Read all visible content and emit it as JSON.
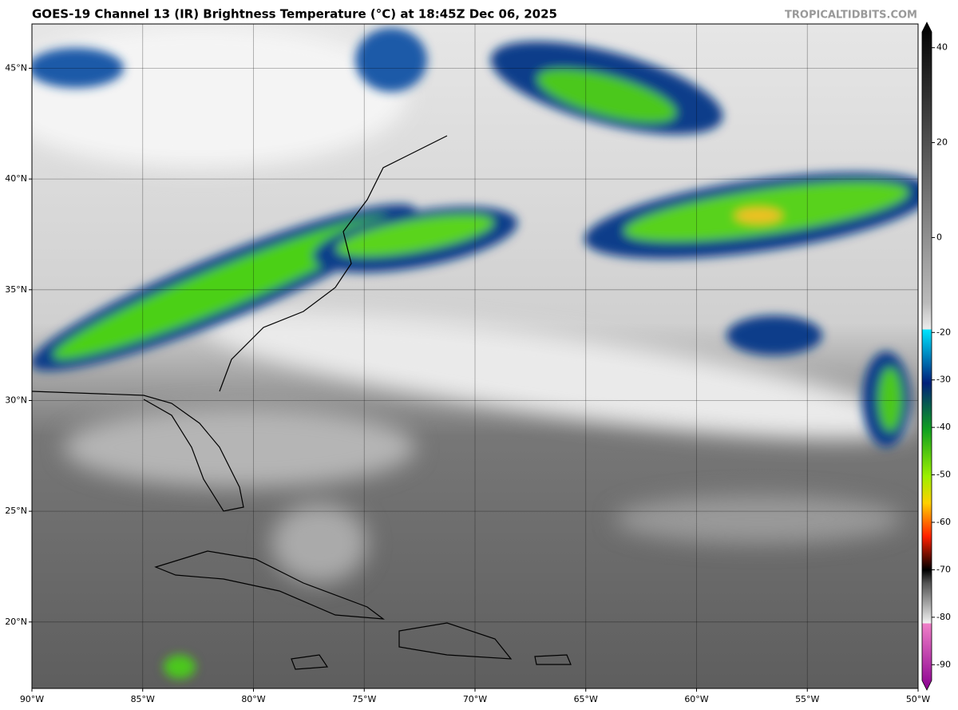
{
  "title": "GOES-19 Channel 13 (IR) Brightness Temperature (°C) at 18:45Z Dec 06, 2025",
  "watermark": "TROPICALTIDBITS.COM",
  "map": {
    "xlim": [
      -90,
      -50
    ],
    "ylim": [
      17,
      47
    ],
    "xticks": [
      {
        "value": -90,
        "label": "90°W"
      },
      {
        "value": -85,
        "label": "85°W"
      },
      {
        "value": -80,
        "label": "80°W"
      },
      {
        "value": -75,
        "label": "75°W"
      },
      {
        "value": -70,
        "label": "70°W"
      },
      {
        "value": -65,
        "label": "65°W"
      },
      {
        "value": -60,
        "label": "60°W"
      },
      {
        "value": -55,
        "label": "55°W"
      },
      {
        "value": -50,
        "label": "50°W"
      }
    ],
    "yticks": [
      {
        "value": 20,
        "label": "20°N"
      },
      {
        "value": 25,
        "label": "25°N"
      },
      {
        "value": 30,
        "label": "30°N"
      },
      {
        "value": 35,
        "label": "35°N"
      },
      {
        "value": 40,
        "label": "40°N"
      },
      {
        "value": 45,
        "label": "45°N"
      }
    ]
  },
  "colorbar": {
    "lim": [
      -95,
      45
    ],
    "ticks": [
      40,
      20,
      0,
      -20,
      -30,
      -40,
      -50,
      -60,
      -70,
      -80,
      -90
    ]
  }
}
